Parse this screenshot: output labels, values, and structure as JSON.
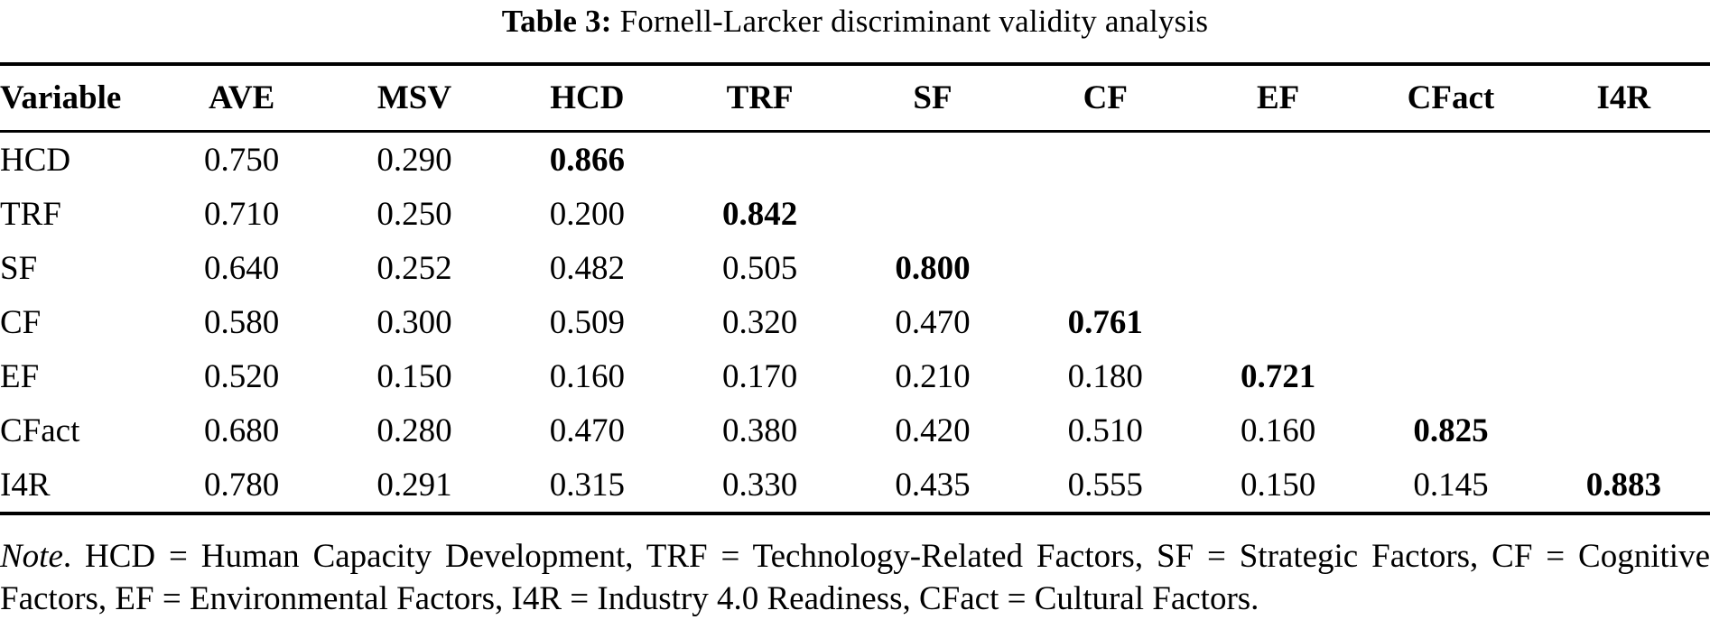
{
  "title": {
    "label": "Table 3:",
    "text": "Fornell-Larcker discriminant validity analysis"
  },
  "table": {
    "columns": [
      "Variable",
      "AVE",
      "MSV",
      "HCD",
      "TRF",
      "SF",
      "CF",
      "EF",
      "CFact",
      "I4R"
    ],
    "rows": [
      {
        "variable": "HCD",
        "values": [
          "0.750",
          "0.290",
          "0.866",
          "",
          "",
          "",
          "",
          "",
          ""
        ],
        "diagonal_index": 2
      },
      {
        "variable": "TRF",
        "values": [
          "0.710",
          "0.250",
          "0.200",
          "0.842",
          "",
          "",
          "",
          "",
          ""
        ],
        "diagonal_index": 3
      },
      {
        "variable": "SF",
        "values": [
          "0.640",
          "0.252",
          "0.482",
          "0.505",
          "0.800",
          "",
          "",
          "",
          ""
        ],
        "diagonal_index": 4
      },
      {
        "variable": "CF",
        "values": [
          "0.580",
          "0.300",
          "0.509",
          "0.320",
          "0.470",
          "0.761",
          "",
          "",
          ""
        ],
        "diagonal_index": 5
      },
      {
        "variable": "EF",
        "values": [
          "0.520",
          "0.150",
          "0.160",
          "0.170",
          "0.210",
          "0.180",
          "0.721",
          "",
          ""
        ],
        "diagonal_index": 6
      },
      {
        "variable": "CFact",
        "values": [
          "0.680",
          "0.280",
          "0.470",
          "0.380",
          "0.420",
          "0.510",
          "0.160",
          "0.825",
          ""
        ],
        "diagonal_index": 7
      },
      {
        "variable": "I4R",
        "values": [
          "0.780",
          "0.291",
          "0.315",
          "0.330",
          "0.435",
          "0.555",
          "0.150",
          "0.145",
          "0.883"
        ],
        "diagonal_index": 8
      }
    ]
  },
  "note": {
    "label": "Note",
    "text": ". HCD = Human Capacity Development, TRF = Technology-Related Factors, SF = Strategic Factors, CF = Cognitive Factors, EF = Environmental Factors, I4R = Industry 4.0 Readiness, CFact = Cultural Factors."
  },
  "colors": {
    "text": "#000000",
    "background": "#ffffff",
    "rule": "#000000"
  }
}
